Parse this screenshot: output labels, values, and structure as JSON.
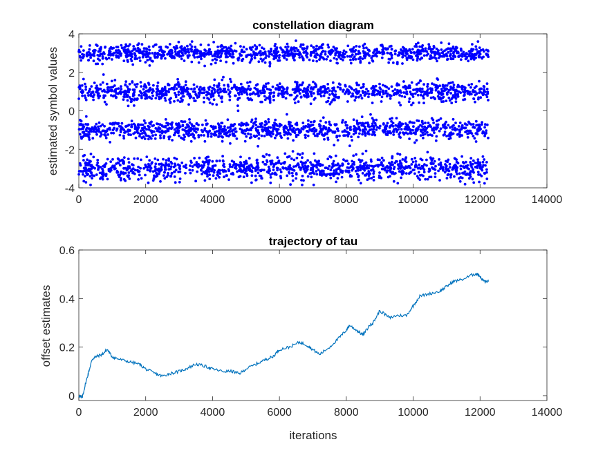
{
  "chart_data": [
    {
      "type": "scatter",
      "title": "constellation diagram",
      "xlabel": "",
      "ylabel": "estimated symbol values",
      "xlim": [
        0,
        14000
      ],
      "ylim": [
        -4,
        4
      ],
      "xticks": [
        0,
        2000,
        4000,
        6000,
        8000,
        10000,
        12000,
        14000
      ],
      "yticks": [
        -4,
        -2,
        0,
        2,
        4
      ],
      "xtick_labels": [
        "0",
        "2000",
        "4000",
        "6000",
        "8000",
        "10000",
        "12000",
        "14000"
      ],
      "ytick_labels": [
        "-4",
        "-2",
        "0",
        "2",
        "4"
      ],
      "grid": false,
      "color": "#0000ff",
      "x_range": [
        0,
        12250
      ],
      "levels": [
        {
          "center": -3,
          "spread": 0.6
        },
        {
          "center": -1,
          "spread": 0.45
        },
        {
          "center": 1,
          "spread": 0.45
        },
        {
          "center": 3,
          "spread": 0.4
        }
      ]
    },
    {
      "type": "line",
      "title": "trajectory of tau",
      "xlabel": "iterations",
      "ylabel": "offset estimates",
      "xlim": [
        0,
        14000
      ],
      "ylim": [
        -0.02,
        0.6
      ],
      "xticks": [
        0,
        2000,
        4000,
        6000,
        8000,
        10000,
        12000,
        14000
      ],
      "yticks": [
        0,
        0.2,
        0.4,
        0.6
      ],
      "xtick_labels": [
        "0",
        "2000",
        "4000",
        "6000",
        "8000",
        "10000",
        "12000",
        "14000"
      ],
      "ytick_labels": [
        "0",
        "0.2",
        "0.4",
        "0.6"
      ],
      "grid": false,
      "color": "#0072bd",
      "x": [
        0,
        100,
        200,
        300,
        400,
        500,
        700,
        850,
        1000,
        1200,
        1500,
        1800,
        2000,
        2300,
        2500,
        2700,
        3000,
        3200,
        3500,
        3800,
        4000,
        4300,
        4600,
        4800,
        5000,
        5300,
        5600,
        5800,
        6000,
        6300,
        6600,
        6800,
        7000,
        7200,
        7500,
        7800,
        8000,
        8100,
        8300,
        8500,
        8700,
        8800,
        9000,
        9300,
        9500,
        9800,
        10000,
        10200,
        10500,
        10800,
        11000,
        11200,
        11500,
        11800,
        11950,
        12050,
        12150,
        12250
      ],
      "y": [
        0.0,
        -0.01,
        0.05,
        0.1,
        0.15,
        0.16,
        0.17,
        0.19,
        0.16,
        0.15,
        0.14,
        0.13,
        0.11,
        0.09,
        0.08,
        0.09,
        0.1,
        0.11,
        0.13,
        0.12,
        0.11,
        0.1,
        0.1,
        0.09,
        0.11,
        0.13,
        0.15,
        0.16,
        0.19,
        0.2,
        0.22,
        0.21,
        0.19,
        0.17,
        0.2,
        0.24,
        0.27,
        0.29,
        0.27,
        0.25,
        0.29,
        0.3,
        0.35,
        0.32,
        0.33,
        0.33,
        0.37,
        0.41,
        0.42,
        0.43,
        0.45,
        0.47,
        0.48,
        0.5,
        0.5,
        0.48,
        0.47,
        0.47
      ]
    }
  ]
}
